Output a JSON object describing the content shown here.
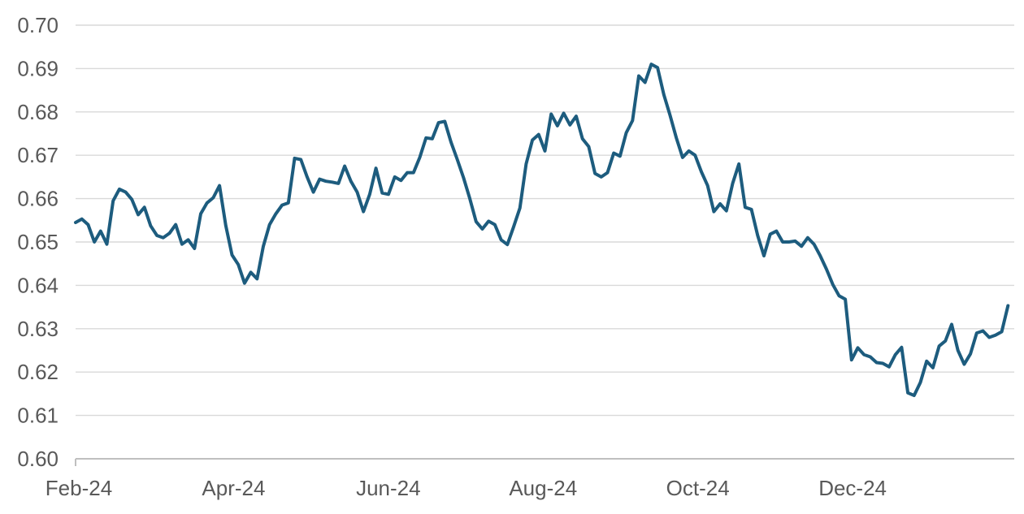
{
  "page": {
    "background": "#ffffff",
    "title": ""
  },
  "chart_data": {
    "type": "line",
    "title": "",
    "subtitle": "",
    "legend": false,
    "grid": true,
    "series_color": "#1d5c7e",
    "grid_color": "#d9d9d9",
    "axis_color": "#bfbfbf",
    "label_color": "#595959",
    "ylim": [
      0.6,
      0.7
    ],
    "y_tick_step": 0.01,
    "y_tick_labels": [
      "0.60",
      "0.61",
      "0.62",
      "0.63",
      "0.64",
      "0.65",
      "0.66",
      "0.67",
      "0.68",
      "0.69",
      "0.70"
    ],
    "x_tick_labels": [
      "Feb-24",
      "Apr-24",
      "Jun-24",
      "Aug-24",
      "Oct-24",
      "Dec-24"
    ],
    "x_tick_month_offsets": [
      0,
      2,
      4,
      6,
      8,
      10
    ],
    "x_span_months": 12.05,
    "values": [
      0.6545,
      0.6553,
      0.654,
      0.65,
      0.6525,
      0.6495,
      0.6595,
      0.6622,
      0.6615,
      0.6598,
      0.6563,
      0.658,
      0.6537,
      0.6515,
      0.651,
      0.652,
      0.654,
      0.6495,
      0.6505,
      0.6485,
      0.6565,
      0.659,
      0.6602,
      0.663,
      0.6538,
      0.647,
      0.6448,
      0.6405,
      0.643,
      0.6415,
      0.649,
      0.654,
      0.6565,
      0.6585,
      0.659,
      0.6693,
      0.669,
      0.665,
      0.6615,
      0.6645,
      0.664,
      0.6638,
      0.6635,
      0.6675,
      0.664,
      0.6615,
      0.657,
      0.661,
      0.667,
      0.6613,
      0.661,
      0.665,
      0.6642,
      0.666,
      0.666,
      0.6695,
      0.674,
      0.6738,
      0.6775,
      0.6778,
      0.673,
      0.669,
      0.6648,
      0.66,
      0.6547,
      0.653,
      0.6548,
      0.654,
      0.6505,
      0.6494,
      0.6535,
      0.6578,
      0.668,
      0.6735,
      0.6748,
      0.671,
      0.6795,
      0.6768,
      0.6797,
      0.677,
      0.679,
      0.6738,
      0.672,
      0.6658,
      0.665,
      0.666,
      0.6705,
      0.6698,
      0.6752,
      0.678,
      0.6883,
      0.6868,
      0.691,
      0.6902,
      0.684,
      0.6792,
      0.674,
      0.6695,
      0.671,
      0.67,
      0.6662,
      0.663,
      0.657,
      0.6588,
      0.6572,
      0.6635,
      0.668,
      0.658,
      0.6575,
      0.6515,
      0.6468,
      0.6518,
      0.6525,
      0.65,
      0.65,
      0.6502,
      0.649,
      0.651,
      0.6495,
      0.6468,
      0.6437,
      0.6402,
      0.6376,
      0.6368,
      0.6228,
      0.6256,
      0.624,
      0.6235,
      0.6222,
      0.622,
      0.6212,
      0.624,
      0.6257,
      0.6152,
      0.6146,
      0.6176,
      0.6225,
      0.621,
      0.626,
      0.6272,
      0.631,
      0.625,
      0.6218,
      0.6242,
      0.629,
      0.6295,
      0.628,
      0.6285,
      0.6293,
      0.6353
    ]
  }
}
